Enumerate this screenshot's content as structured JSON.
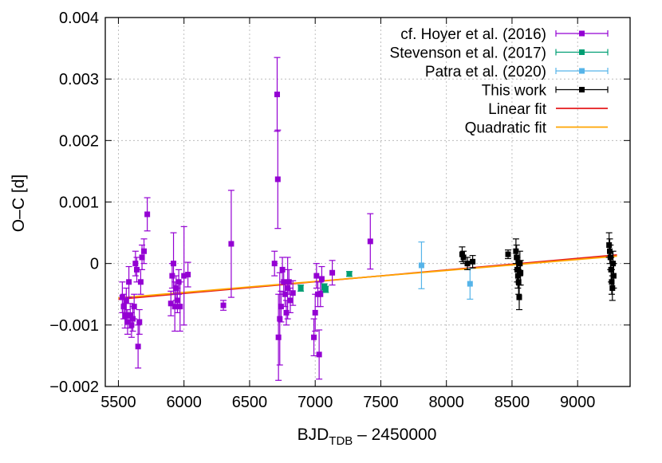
{
  "chart_data": {
    "type": "scatter",
    "xlabel": "BJD",
    "xlabel_sub": "TDB",
    "xlabel_suffix": " – 2450000",
    "ylabel": "O–C [d]",
    "xlim": [
      5400,
      9400
    ],
    "ylim": [
      -0.002,
      0.004
    ],
    "x_ticks": [
      5500,
      6000,
      6500,
      7000,
      7500,
      8000,
      8500,
      9000
    ],
    "y_ticks": [
      -0.002,
      -0.001,
      0,
      0.001,
      0.002,
      0.003,
      0.004
    ],
    "y_tick_labels": [
      "−0.002",
      "−0.001",
      "0",
      "0.001",
      "0.002",
      "0.003",
      "0.004"
    ],
    "grid": true,
    "legend_position": "top-right",
    "series": [
      {
        "name": "cf. Hoyer et al. (2016)",
        "color": "#9400d3",
        "points": [
          {
            "x": 5530,
            "y": -0.00055,
            "err": 0.00025
          },
          {
            "x": 5540,
            "y": -0.0007,
            "err": 0.0002
          },
          {
            "x": 5550,
            "y": -0.00085,
            "err": 0.0002
          },
          {
            "x": 5560,
            "y": -0.0006,
            "err": 0.0002
          },
          {
            "x": 5570,
            "y": -0.00095,
            "err": 0.0002
          },
          {
            "x": 5580,
            "y": -0.0003,
            "err": 0.00025
          },
          {
            "x": 5590,
            "y": -0.00085,
            "err": 0.0002
          },
          {
            "x": 5600,
            "y": -0.001,
            "err": 0.0002
          },
          {
            "x": 5610,
            "y": -0.0009,
            "err": 0.0002
          },
          {
            "x": 5620,
            "y": -0.0007,
            "err": 0.0002
          },
          {
            "x": 5630,
            "y": 0.0,
            "err": 0.0002
          },
          {
            "x": 5640,
            "y": -0.0001,
            "err": 0.0002
          },
          {
            "x": 5650,
            "y": -0.00135,
            "err": 0.00035
          },
          {
            "x": 5660,
            "y": -0.00095,
            "err": 0.0002
          },
          {
            "x": 5670,
            "y": -0.0003,
            "err": 0.0002
          },
          {
            "x": 5680,
            "y": 0.0001,
            "err": 0.0002
          },
          {
            "x": 5695,
            "y": 0.0002,
            "err": 0.0002
          },
          {
            "x": 5720,
            "y": 0.0008,
            "err": 0.00027
          },
          {
            "x": 5900,
            "y": -0.00065,
            "err": 0.0002
          },
          {
            "x": 5910,
            "y": -0.0002,
            "err": 0.0002
          },
          {
            "x": 5920,
            "y": 0.0,
            "err": 0.0005
          },
          {
            "x": 5930,
            "y": -0.0007,
            "err": 0.0004
          },
          {
            "x": 5940,
            "y": -0.0004,
            "err": 0.0002
          },
          {
            "x": 5950,
            "y": -0.0006,
            "err": 0.0002
          },
          {
            "x": 5960,
            "y": -0.0003,
            "err": 0.0002
          },
          {
            "x": 5970,
            "y": -0.0007,
            "err": 0.0004
          },
          {
            "x": 6000,
            "y": -0.0002,
            "err": 0.0008
          },
          {
            "x": 6030,
            "y": -0.00018,
            "err": 0.0002
          },
          {
            "x": 6300,
            "y": -0.00068,
            "err": 8e-05
          },
          {
            "x": 6360,
            "y": 0.00032,
            "err": 0.00087
          },
          {
            "x": 6690,
            "y": 0.0,
            "err": 0.0002
          },
          {
            "x": 6710,
            "y": 0.00275,
            "err": 0.0006
          },
          {
            "x": 6715,
            "y": 0.00137,
            "err": 0.0008
          },
          {
            "x": 6720,
            "y": -0.0012,
            "err": 0.0007
          },
          {
            "x": 6730,
            "y": -0.0009,
            "err": 0.00075
          },
          {
            "x": 6740,
            "y": -0.0007,
            "err": 0.00025
          },
          {
            "x": 6750,
            "y": -0.0001,
            "err": 0.0002
          },
          {
            "x": 6760,
            "y": -0.0003,
            "err": 0.0002
          },
          {
            "x": 6770,
            "y": -0.0005,
            "err": 0.0002
          },
          {
            "x": 6780,
            "y": -0.0008,
            "err": 0.0002
          },
          {
            "x": 6790,
            "y": -0.0004,
            "err": 0.0005
          },
          {
            "x": 6800,
            "y": -0.0003,
            "err": 0.0002
          },
          {
            "x": 6810,
            "y": -0.0006,
            "err": 0.0002
          },
          {
            "x": 6830,
            "y": -0.00048,
            "err": 0.0002
          },
          {
            "x": 6990,
            "y": -0.0012,
            "err": 0.0003
          },
          {
            "x": 7000,
            "y": -0.0008,
            "err": 0.0003
          },
          {
            "x": 7010,
            "y": -0.0002,
            "err": 0.0002
          },
          {
            "x": 7020,
            "y": -0.0005,
            "err": 0.0002
          },
          {
            "x": 7030,
            "y": -0.00148,
            "err": 0.0004
          },
          {
            "x": 7040,
            "y": -0.0005,
            "err": 0.0002
          },
          {
            "x": 7050,
            "y": -0.00025,
            "err": 0.0002
          },
          {
            "x": 7130,
            "y": -0.00015,
            "err": 0.0002
          },
          {
            "x": 7420,
            "y": 0.00036,
            "err": 0.00045
          }
        ]
      },
      {
        "name": "Stevenson et al. (2017)",
        "color": "#009e73",
        "points": [
          {
            "x": 6890,
            "y": -0.0004,
            "err": 5e-05
          },
          {
            "x": 7070,
            "y": -0.00038,
            "err": 5e-05
          },
          {
            "x": 7080,
            "y": -0.00042,
            "err": 5e-05
          },
          {
            "x": 7260,
            "y": -0.00017,
            "err": 4e-05
          }
        ]
      },
      {
        "name": "Patra et al. (2020)",
        "color": "#56b4e9",
        "points": [
          {
            "x": 7810,
            "y": -3e-05,
            "err": 0.00038
          },
          {
            "x": 8180,
            "y": -0.00033,
            "err": 0.00025
          }
        ]
      },
      {
        "name": "This work",
        "color": "#000000",
        "points": [
          {
            "x": 8120,
            "y": 0.00015,
            "err": 0.00012
          },
          {
            "x": 8130,
            "y": 0.0001,
            "err": 0.0001
          },
          {
            "x": 8160,
            "y": -0.0,
            "err": 0.0001
          },
          {
            "x": 8200,
            "y": 3e-05,
            "err": 0.0001
          },
          {
            "x": 8470,
            "y": 0.00015,
            "err": 7e-05
          },
          {
            "x": 8530,
            "y": 0.0002,
            "err": 0.0002
          },
          {
            "x": 8535,
            "y": 0.0001,
            "err": 0.0002
          },
          {
            "x": 8540,
            "y": -0.0001,
            "err": 0.0002
          },
          {
            "x": 8545,
            "y": -0.0002,
            "err": 0.0002
          },
          {
            "x": 8550,
            "y": -0.0003,
            "err": 0.0002
          },
          {
            "x": 8555,
            "y": -0.00055,
            "err": 0.0002
          },
          {
            "x": 8560,
            "y": 0.0,
            "err": 0.0002
          },
          {
            "x": 8565,
            "y": -0.00015,
            "err": 0.0002
          },
          {
            "x": 9240,
            "y": 0.0003,
            "err": 0.0002
          },
          {
            "x": 9245,
            "y": 0.0002,
            "err": 0.0002
          },
          {
            "x": 9250,
            "y": 0.0001,
            "err": 0.0002
          },
          {
            "x": 9255,
            "y": -0.0001,
            "err": 0.0002
          },
          {
            "x": 9260,
            "y": -0.0003,
            "err": 0.0002
          },
          {
            "x": 9265,
            "y": -0.0004,
            "err": 0.0002
          },
          {
            "x": 9270,
            "y": 0.0,
            "err": 0.0002
          },
          {
            "x": 9275,
            "y": -0.0002,
            "err": 0.0002
          }
        ]
      }
    ],
    "fits": [
      {
        "name": "Linear fit",
        "color": "#e41a1c",
        "x": [
          5500,
          9300
        ],
        "y": [
          -0.00058,
          0.00014
        ]
      },
      {
        "name": "Quadratic fit",
        "color": "#ffa500",
        "x": [
          5500,
          9300
        ],
        "y": [
          -0.00056,
          0.00012
        ]
      }
    ]
  }
}
